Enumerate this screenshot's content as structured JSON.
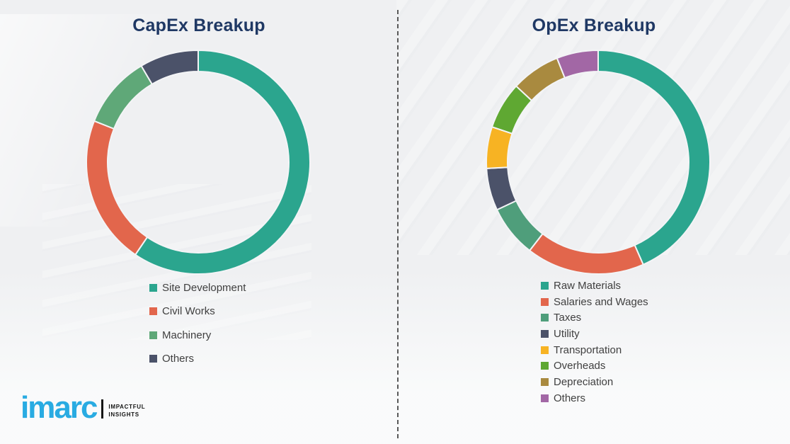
{
  "page": {
    "background_color": "#EFF0F2",
    "divider_style": "vertical-dashed",
    "divider_color": "#595959",
    "title_color": "#1F3864",
    "legend_text_color": "#404040"
  },
  "chart_data": [
    {
      "type": "pie",
      "variant": "donut",
      "title": "CapEx Breakup",
      "categories": [
        "Site Development",
        "Civil Works",
        "Machinery",
        "Others"
      ],
      "values": [
        59.5,
        21.5,
        10.5,
        8.5
      ],
      "colors": [
        "#2BA58E",
        "#E2664C",
        "#5FA878",
        "#4B5269"
      ],
      "units": "percent",
      "start_angle_deg": 0,
      "direction": "clockwise",
      "inner_radius_ratio": 0.81,
      "legend_position": "bottom",
      "data_labels": "none"
    },
    {
      "type": "pie",
      "variant": "donut",
      "title": "OpEx Breakup",
      "categories": [
        "Raw Materials",
        "Salaries and Wages",
        "Taxes",
        "Utility",
        "Transportation",
        "Overheads",
        "Depreciation",
        "Others"
      ],
      "values": [
        43.4,
        17.1,
        7.5,
        6.1,
        6.0,
        6.8,
        7.1,
        6.0
      ],
      "colors": [
        "#2BA58E",
        "#E2664C",
        "#4F9E7B",
        "#4B5269",
        "#F7B323",
        "#5FA832",
        "#A98A3F",
        "#A267A5"
      ],
      "units": "percent",
      "start_angle_deg": 0,
      "direction": "clockwise",
      "inner_radius_ratio": 0.81,
      "legend_position": "bottom",
      "data_labels": "none"
    }
  ],
  "logo": {
    "brand": "imarc",
    "tagline": [
      "IMPACTFUL",
      "INSIGHTS"
    ],
    "brand_color": "#29ABE2"
  }
}
